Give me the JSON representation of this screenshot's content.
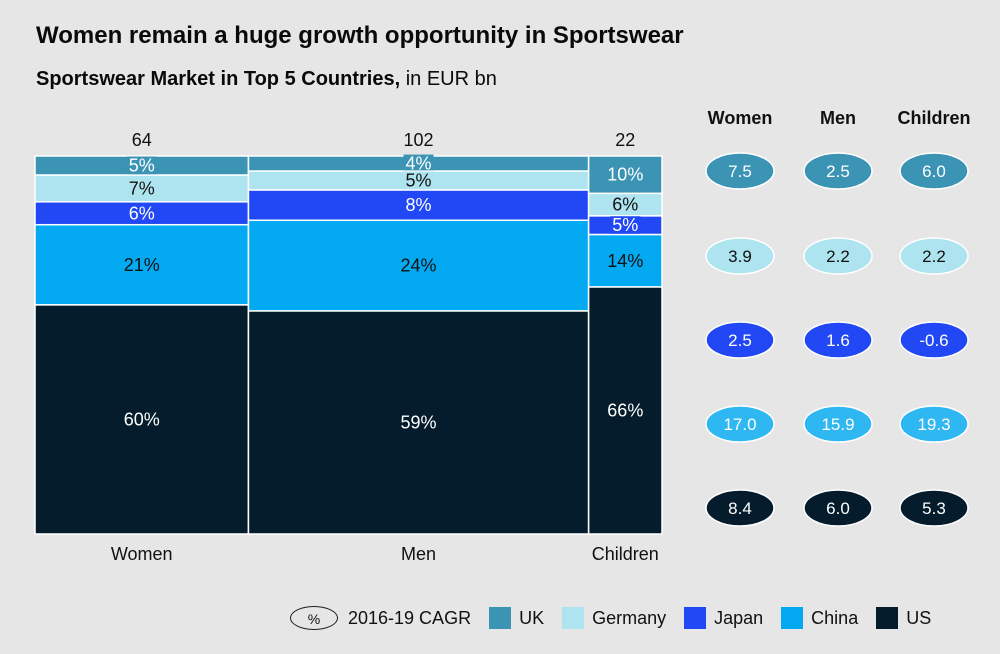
{
  "title": "Women remain a huge growth opportunity in Sportswear",
  "subtitle_bold": "Sportswear Market in Top 5 Countries,",
  "subtitle_rest": " in EUR bn",
  "colors": {
    "UK": "#3b94b4",
    "Germany": "#aee4ef",
    "Japan": "#2148f4",
    "China": "#03aaf2",
    "US": "#051c2c",
    "background": "#e6e6e6"
  },
  "legend": {
    "cagr_symbol": "%",
    "cagr_label": "2016-19 CAGR",
    "items": [
      "UK",
      "Germany",
      "Japan",
      "China",
      "US"
    ]
  },
  "chart_data": {
    "type": "marimekko",
    "categories": [
      "Women",
      "Men",
      "Children"
    ],
    "totals": [
      64,
      102,
      22
    ],
    "total_labels": [
      "64",
      "102",
      "22"
    ],
    "series_order_top_to_bottom": [
      "UK",
      "Germany",
      "Japan",
      "China",
      "US"
    ],
    "shares": {
      "Women": {
        "UK": 5,
        "Germany": 7,
        "Japan": 6,
        "China": 21,
        "US": 60
      },
      "Men": {
        "UK": 4,
        "Germany": 5,
        "Japan": 8,
        "China": 24,
        "US": 59
      },
      "Children": {
        "UK": 10,
        "Germany": 6,
        "Japan": 5,
        "China": 14,
        "US": 66
      }
    },
    "share_unit": "%",
    "cagr_table": {
      "columns": [
        "Women",
        "Men",
        "Children"
      ],
      "rows": [
        {
          "series": "UK",
          "values": [
            "7.5",
            "2.5",
            "6.0"
          ]
        },
        {
          "series": "Germany",
          "values": [
            "3.9",
            "2.2",
            "2.2"
          ]
        },
        {
          "series": "Japan",
          "values": [
            "2.5",
            "1.6",
            "-0.6"
          ]
        },
        {
          "series": "China",
          "values": [
            "17.0",
            "15.9",
            "19.3"
          ]
        },
        {
          "series": "US",
          "values": [
            "8.4",
            "6.0",
            "5.3"
          ]
        }
      ]
    }
  }
}
